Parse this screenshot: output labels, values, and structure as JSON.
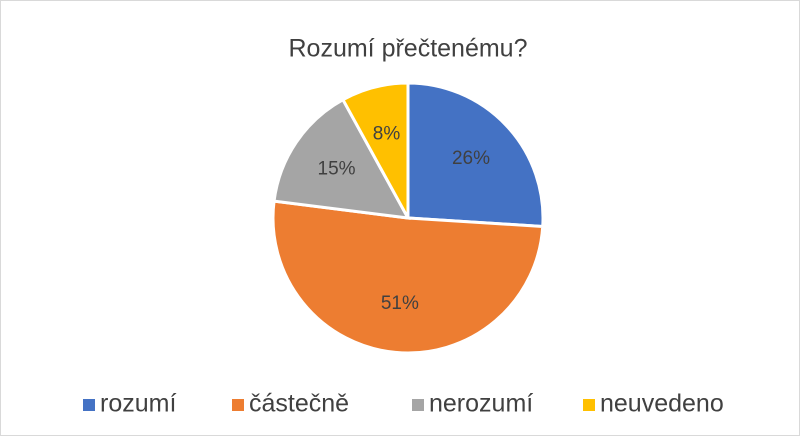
{
  "chart_data": {
    "type": "pie",
    "title": "Rozumí přečtenému?",
    "categories": [
      "rozumí",
      "částečně",
      "nerozumí",
      "neuvedeno"
    ],
    "values": [
      26,
      51,
      15,
      8
    ],
    "value_labels": [
      "26%",
      "51%",
      "15%",
      "8%"
    ],
    "colors": [
      "#4472c4",
      "#ed7d31",
      "#a5a5a5",
      "#ffc000"
    ],
    "legend": "bottom"
  }
}
